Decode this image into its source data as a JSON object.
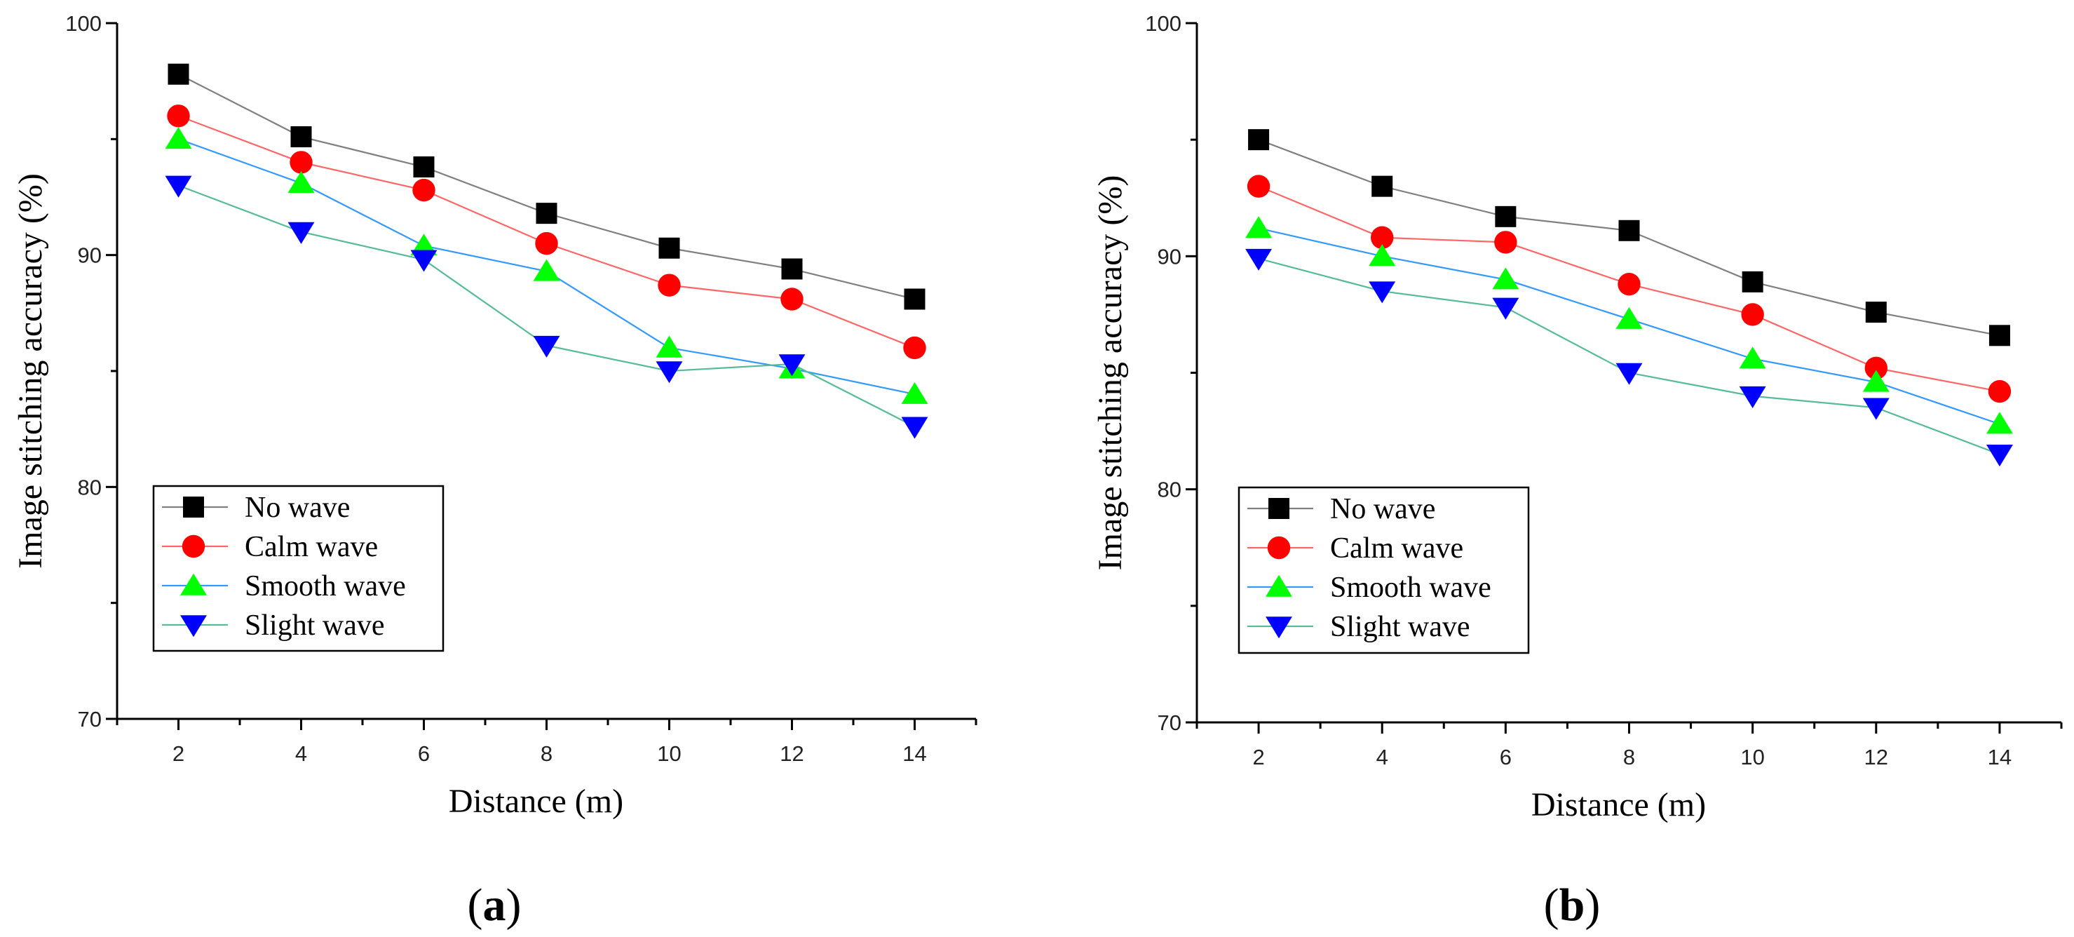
{
  "colors": {
    "no_wave_marker": "#000000",
    "no_wave_line": "#808080",
    "calm_wave": "#ff0000",
    "calm_wave_line": "#ff6666",
    "smooth_wave": "#00ff00",
    "smooth_wave_line": "#3399ff",
    "slight_wave": "#0000ff",
    "slight_wave_line": "#55bb99"
  },
  "chart_data": [
    {
      "type": "line",
      "panel_label": "a",
      "xlabel": "Distance (m)",
      "ylabel": "Image stitching accuracy (%)",
      "x": [
        2,
        4,
        6,
        8,
        10,
        12,
        14
      ],
      "xticks": [
        "2",
        "4",
        "6",
        "8",
        "10",
        "12",
        "14"
      ],
      "xlim": [
        1,
        15
      ],
      "ylim": [
        70,
        100
      ],
      "yticks": [
        "70",
        "80",
        "90",
        "100"
      ],
      "legend_position": "bottom-left",
      "series": [
        {
          "name": "No wave",
          "marker": "square",
          "values": [
            97.8,
            95.1,
            93.8,
            91.8,
            90.3,
            89.4,
            88.1
          ]
        },
        {
          "name": "Calm wave",
          "marker": "circle",
          "values": [
            96.0,
            94.0,
            92.8,
            90.5,
            88.7,
            88.1,
            86.0
          ]
        },
        {
          "name": "Smooth wave",
          "marker": "triangle-up",
          "values": [
            95.0,
            93.1,
            90.4,
            89.3,
            86.0,
            85.1,
            84.0
          ]
        },
        {
          "name": "Slight wave",
          "marker": "triangle-down",
          "values": [
            93.0,
            91.0,
            89.8,
            86.1,
            85.0,
            85.3,
            82.6
          ]
        }
      ]
    },
    {
      "type": "line",
      "panel_label": "b",
      "xlabel": "Distance (m)",
      "ylabel": "Image stitching accuracy (%)",
      "x": [
        2,
        4,
        6,
        8,
        10,
        12,
        14
      ],
      "xticks": [
        "2",
        "4",
        "6",
        "8",
        "10",
        "12",
        "14"
      ],
      "xlim": [
        1,
        15
      ],
      "ylim": [
        70,
        100
      ],
      "yticks": [
        "70",
        "80",
        "90",
        "100"
      ],
      "legend_position": "bottom-left",
      "series": [
        {
          "name": "No wave",
          "marker": "square",
          "values": [
            95.0,
            93.0,
            91.7,
            91.1,
            88.9,
            87.6,
            86.6
          ]
        },
        {
          "name": "Calm wave",
          "marker": "circle",
          "values": [
            93.0,
            90.8,
            90.6,
            88.8,
            87.5,
            85.2,
            84.2
          ]
        },
        {
          "name": "Smooth wave",
          "marker": "triangle-up",
          "values": [
            91.2,
            90.0,
            89.0,
            87.3,
            85.6,
            84.6,
            82.8
          ]
        },
        {
          "name": "Slight wave",
          "marker": "triangle-down",
          "values": [
            89.9,
            88.5,
            87.8,
            85.0,
            84.0,
            83.5,
            81.5
          ]
        }
      ]
    }
  ]
}
